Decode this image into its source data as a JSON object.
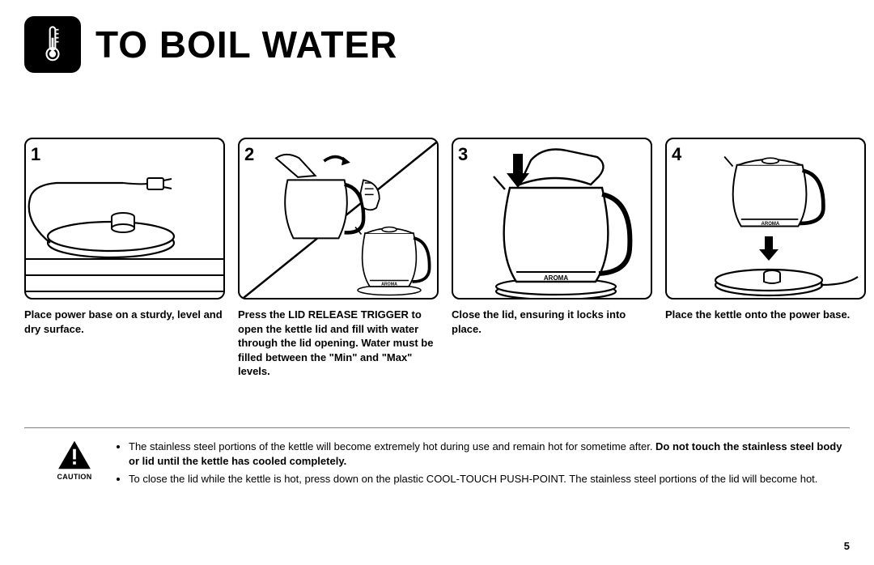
{
  "title": "TO BOIL WATER",
  "steps": [
    {
      "num": "1",
      "text": "Place power base on a sturdy, level and dry surface."
    },
    {
      "num": "2",
      "text": "Press the LID RELEASE TRIGGER to open the kettle lid and fill with water through the lid opening. Water must be filled between the \"Min\" and \"Max\" levels."
    },
    {
      "num": "3",
      "text": "Close the lid, ensuring it locks into place."
    },
    {
      "num": "4",
      "text": "Place the kettle onto the power base."
    }
  ],
  "caution": {
    "label": "CAUTION",
    "bullets_html": [
      "The stainless steel portions of the kettle will become extremely hot during use and remain hot for sometime after. <b>Do not touch the stainless steel body or lid until the kettle has cooled completely.</b>",
      "To close the lid while the kettle is hot, press down on the plastic COOL-TOUCH PUSH-POINT. The stainless steel portions of the lid will become hot."
    ]
  },
  "brand_label": "AROMA",
  "page_number": "5",
  "colors": {
    "fg": "#000000",
    "bg": "#ffffff",
    "rule": "#808080"
  }
}
